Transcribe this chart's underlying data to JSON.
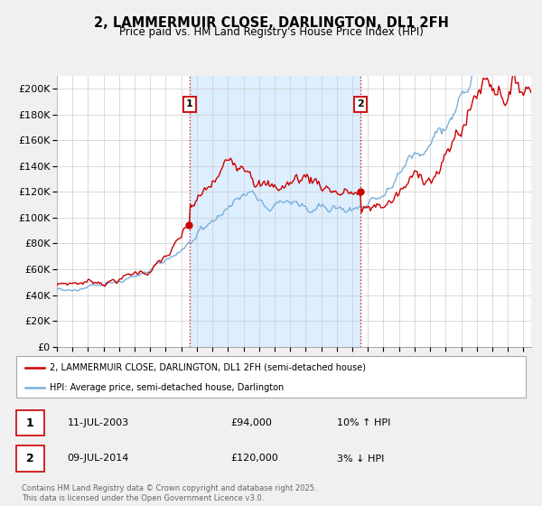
{
  "title": "2, LAMMERMUIR CLOSE, DARLINGTON, DL1 2FH",
  "subtitle": "Price paid vs. HM Land Registry's House Price Index (HPI)",
  "xlim_start": 1995.0,
  "xlim_end": 2025.5,
  "ylim": [
    0,
    210000
  ],
  "yticks": [
    0,
    20000,
    40000,
    60000,
    80000,
    100000,
    120000,
    140000,
    160000,
    180000,
    200000
  ],
  "ytick_labels": [
    "£0",
    "£20K",
    "£40K",
    "£60K",
    "£80K",
    "£100K",
    "£120K",
    "£140K",
    "£160K",
    "£180K",
    "£200K"
  ],
  "red_color": "#cc0000",
  "blue_color": "#7aafda",
  "shade_color": "#ddeeff",
  "vline1_x": 2003.53,
  "vline2_x": 2014.53,
  "sale1_price": 94000,
  "sale1_date": "11-JUL-2003",
  "sale1_hpi": "10% ↑ HPI",
  "sale2_price": 120000,
  "sale2_date": "09-JUL-2014",
  "sale2_hpi": "3% ↓ HPI",
  "legend_label_red": "2, LAMMERMUIR CLOSE, DARLINGTON, DL1 2FH (semi-detached house)",
  "legend_label_blue": "HPI: Average price, semi-detached house, Darlington",
  "footer": "Contains HM Land Registry data © Crown copyright and database right 2025.\nThis data is licensed under the Open Government Licence v3.0.",
  "background_color": "#f0f0f0",
  "plot_bg_color": "#ffffff"
}
